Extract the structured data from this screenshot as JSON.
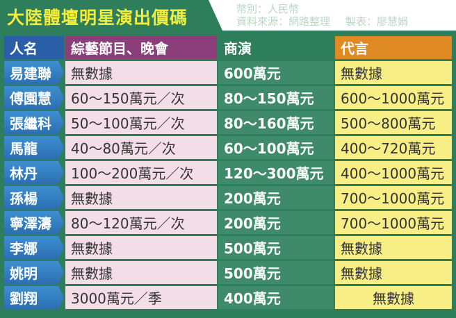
{
  "title": "大陸體壇明星演出價碼",
  "meta": {
    "currency": "幣別：人民幣",
    "source": "資料來源：網路整理",
    "maker": "製表：廖慧娟"
  },
  "headers": {
    "name": "人名",
    "variety": "綜藝節目、晚會",
    "ad": "商演",
    "endorse": "代言"
  },
  "rows": [
    {
      "name": "易建聯",
      "variety": "無數據",
      "ad": "600萬元",
      "endorse": "無數據"
    },
    {
      "name": "傅園慧",
      "variety": "60～150萬元／次",
      "ad": "80～150萬元",
      "endorse": "600～1000萬元"
    },
    {
      "name": "張繼科",
      "variety": "50～100萬元／次",
      "ad": "80～160萬元",
      "endorse": "500～800萬元"
    },
    {
      "name": "馬龍",
      "variety": "40～80萬元／次",
      "ad": "60～100萬元",
      "endorse": "400～720萬元"
    },
    {
      "name": "林丹",
      "variety": "100～200萬元／次",
      "ad": "120～300萬元",
      "endorse": "400～1000萬元"
    },
    {
      "name": "孫楊",
      "variety": "無數據",
      "ad": "200萬元",
      "endorse": "700～1000萬元"
    },
    {
      "name": "寧澤濤",
      "variety": "80～120萬元／次",
      "ad": "200萬元",
      "endorse": "700～1000萬元"
    },
    {
      "name": "李娜",
      "variety": "無數據",
      "ad": "500萬元",
      "endorse": "無數據"
    },
    {
      "name": "姚明",
      "variety": "無數據",
      "ad": "500萬元",
      "endorse": "無數據"
    },
    {
      "name": "劉翔",
      "variety": "3000萬元／季",
      "ad": "400萬元",
      "endorse": "無數據"
    }
  ]
}
